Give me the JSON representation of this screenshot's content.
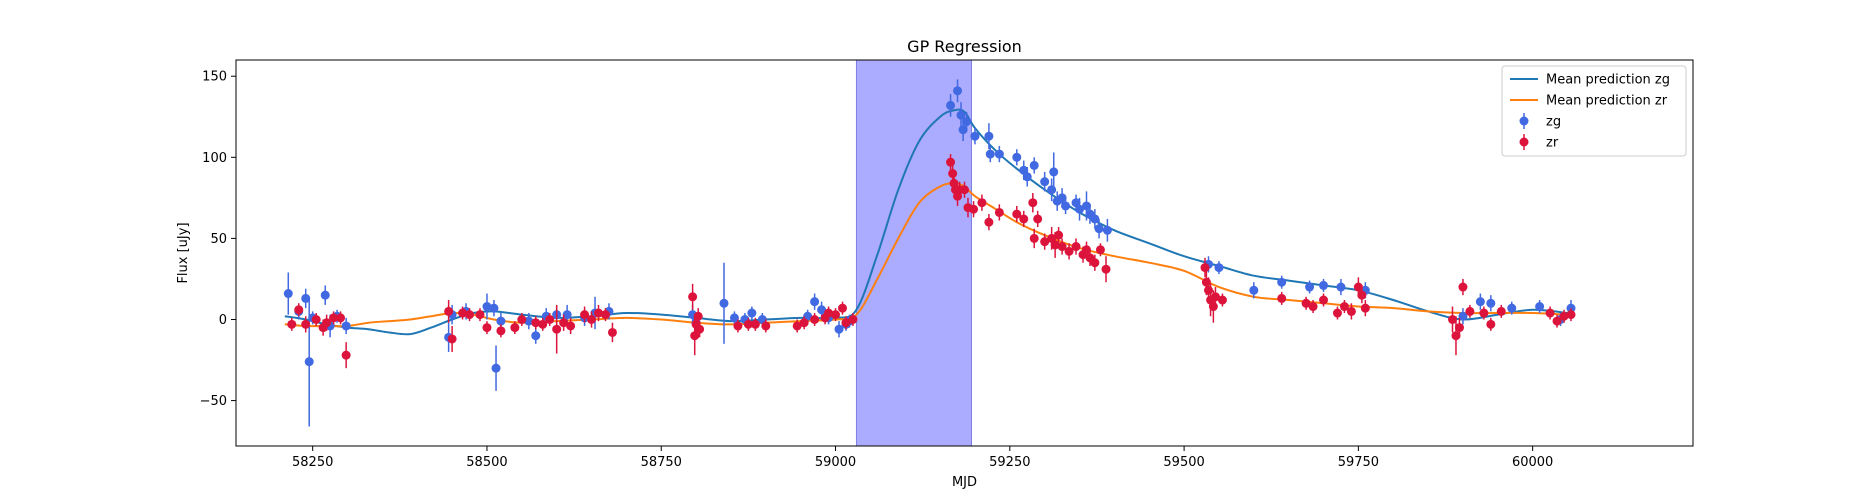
{
  "chart_data": {
    "type": "scatter",
    "title": "GP Regression",
    "xlabel": "MJD",
    "ylabel": "Flux [uJy]",
    "xlim": [
      58140,
      60230
    ],
    "ylim": [
      -78,
      160
    ],
    "xticks": [
      58250,
      58500,
      58750,
      59000,
      59250,
      59500,
      59750,
      60000
    ],
    "yticks": [
      -50,
      0,
      50,
      100,
      150
    ],
    "grid": false,
    "legend_position": "top-right",
    "shaded_region": {
      "x_start": 59030,
      "x_end": 59195,
      "color": "#a6a6ff"
    },
    "lines": [
      {
        "name": "Mean prediction zg",
        "color": "#1f77b4",
        "x": [
          58210,
          58240,
          58270,
          58300,
          58330,
          58360,
          58390,
          58420,
          58450,
          58480,
          58510,
          58550,
          58600,
          58650,
          58700,
          58750,
          58800,
          58850,
          58900,
          58950,
          59000,
          59030,
          59060,
          59090,
          59120,
          59150,
          59170,
          59185,
          59200,
          59230,
          59260,
          59300,
          59350,
          59400,
          59450,
          59500,
          59550,
          59600,
          59650,
          59700,
          59750,
          59800,
          59850,
          59900,
          59950,
          60000,
          60050
        ],
        "y": [
          2,
          0,
          -3,
          -5,
          -6,
          -8,
          -9,
          -5,
          0,
          4,
          5,
          3,
          1,
          2,
          4,
          3,
          1,
          -1,
          0,
          1,
          1,
          6,
          40,
          80,
          110,
          125,
          129,
          128,
          118,
          104,
          93,
          80,
          66,
          55,
          47,
          39,
          33,
          27,
          24,
          21,
          18,
          12,
          5,
          0,
          3,
          6,
          4
        ]
      },
      {
        "name": "Mean prediction zr",
        "color": "#ff7f0e",
        "x": [
          58210,
          58240,
          58270,
          58300,
          58330,
          58360,
          58390,
          58420,
          58450,
          58480,
          58510,
          58550,
          58600,
          58650,
          58700,
          58750,
          58800,
          58850,
          58900,
          58950,
          59000,
          59030,
          59060,
          59090,
          59120,
          59150,
          59170,
          59185,
          59200,
          59230,
          59260,
          59300,
          59350,
          59400,
          59450,
          59500,
          59550,
          59600,
          59650,
          59700,
          59750,
          59800,
          59850,
          59900,
          59950,
          60000,
          60050
        ],
        "y": [
          -3,
          -4,
          -4,
          -4,
          -2,
          -1,
          0,
          2,
          4,
          3,
          0,
          -2,
          -1,
          0,
          1,
          0,
          -2,
          -3,
          -2,
          -1,
          0,
          3,
          25,
          50,
          72,
          82,
          84,
          82,
          76,
          68,
          60,
          52,
          44,
          39,
          35,
          30,
          20,
          14,
          12,
          10,
          8,
          7,
          5,
          4,
          4,
          4,
          3
        ]
      }
    ],
    "series": [
      {
        "name": "zg",
        "color": "#4169e1",
        "points": [
          [
            58215,
            16,
            13
          ],
          [
            58230,
            5,
            5
          ],
          [
            58240,
            13,
            6
          ],
          [
            58245,
            -26,
            40
          ],
          [
            58250,
            1,
            4
          ],
          [
            58268,
            15,
            6
          ],
          [
            58275,
            -4,
            7
          ],
          [
            58285,
            2,
            4
          ],
          [
            58298,
            -4,
            5
          ],
          [
            58445,
            -11,
            9
          ],
          [
            58450,
            3,
            6
          ],
          [
            58470,
            5,
            5
          ],
          [
            58500,
            8,
            8
          ],
          [
            58510,
            7,
            5
          ],
          [
            58513,
            -30,
            14
          ],
          [
            58520,
            -1,
            5
          ],
          [
            58560,
            -1,
            5
          ],
          [
            58570,
            -10,
            5
          ],
          [
            58585,
            2,
            5
          ],
          [
            58600,
            3,
            5
          ],
          [
            58615,
            3,
            6
          ],
          [
            58640,
            1,
            5
          ],
          [
            58655,
            4,
            10
          ],
          [
            58675,
            5,
            5
          ],
          [
            58795,
            3,
            6
          ],
          [
            58800,
            -2,
            5
          ],
          [
            58840,
            10,
            25
          ],
          [
            58855,
            1,
            4
          ],
          [
            58870,
            0,
            4
          ],
          [
            58880,
            4,
            4
          ],
          [
            58895,
            0,
            4
          ],
          [
            58960,
            2,
            4
          ],
          [
            58970,
            11,
            5
          ],
          [
            58980,
            6,
            5
          ],
          [
            58990,
            1,
            4
          ],
          [
            59005,
            -6,
            5
          ],
          [
            59015,
            -3,
            4
          ],
          [
            59020,
            -1,
            4
          ],
          [
            59165,
            132,
            7
          ],
          [
            59175,
            141,
            7
          ],
          [
            59180,
            126,
            8
          ],
          [
            59183,
            117,
            7
          ],
          [
            59188,
            122,
            6
          ],
          [
            59200,
            113,
            5
          ],
          [
            59220,
            113,
            8
          ],
          [
            59222,
            102,
            5
          ],
          [
            59235,
            102,
            5
          ],
          [
            59260,
            100,
            5
          ],
          [
            59270,
            92,
            6
          ],
          [
            59275,
            88,
            6
          ],
          [
            59285,
            95,
            5
          ],
          [
            59300,
            85,
            6
          ],
          [
            59310,
            80,
            7
          ],
          [
            59313,
            91,
            12
          ],
          [
            59318,
            73,
            6
          ],
          [
            59325,
            75,
            6
          ],
          [
            59330,
            70,
            5
          ],
          [
            59345,
            72,
            5
          ],
          [
            59350,
            68,
            7
          ],
          [
            59360,
            70,
            9
          ],
          [
            59365,
            65,
            6
          ],
          [
            59372,
            62,
            6
          ],
          [
            59378,
            56,
            6
          ],
          [
            59390,
            55,
            7
          ],
          [
            59535,
            34,
            5
          ],
          [
            59550,
            32,
            4
          ],
          [
            59600,
            18,
            5
          ],
          [
            59640,
            23,
            4
          ],
          [
            59680,
            20,
            4
          ],
          [
            59700,
            21,
            4
          ],
          [
            59725,
            20,
            5
          ],
          [
            59760,
            18,
            5
          ],
          [
            59900,
            2,
            5
          ],
          [
            59925,
            11,
            5
          ],
          [
            59940,
            10,
            5
          ],
          [
            59970,
            7,
            4
          ],
          [
            60010,
            8,
            4
          ],
          [
            60040,
            0,
            4
          ],
          [
            60055,
            7,
            5
          ]
        ]
      },
      {
        "name": "zr",
        "color": "#dc143c",
        "points": [
          [
            58220,
            -3,
            4
          ],
          [
            58230,
            6,
            4
          ],
          [
            58240,
            -3,
            5
          ],
          [
            58255,
            0,
            4
          ],
          [
            58265,
            -5,
            5
          ],
          [
            58270,
            -2,
            5
          ],
          [
            58280,
            1,
            4
          ],
          [
            58290,
            1,
            4
          ],
          [
            58298,
            -22,
            8
          ],
          [
            58445,
            5,
            7
          ],
          [
            58450,
            -12,
            8
          ],
          [
            58465,
            4,
            4
          ],
          [
            58475,
            3,
            4
          ],
          [
            58490,
            3,
            4
          ],
          [
            58500,
            -5,
            4
          ],
          [
            58520,
            -7,
            4
          ],
          [
            58540,
            -5,
            4
          ],
          [
            58550,
            0,
            4
          ],
          [
            58570,
            -2,
            4
          ],
          [
            58580,
            -3,
            4
          ],
          [
            58590,
            0,
            4
          ],
          [
            58600,
            -6,
            15
          ],
          [
            58610,
            -2,
            5
          ],
          [
            58620,
            -4,
            5
          ],
          [
            58640,
            3,
            5
          ],
          [
            58650,
            0,
            5
          ],
          [
            58660,
            4,
            5
          ],
          [
            58670,
            3,
            4
          ],
          [
            58680,
            -8,
            6
          ],
          [
            58795,
            14,
            8
          ],
          [
            58798,
            -10,
            12
          ],
          [
            58800,
            -3,
            7
          ],
          [
            58803,
            2,
            5
          ],
          [
            58805,
            -6,
            5
          ],
          [
            58860,
            -4,
            4
          ],
          [
            58875,
            -3,
            4
          ],
          [
            58885,
            -3,
            4
          ],
          [
            58900,
            -4,
            4
          ],
          [
            58945,
            -4,
            4
          ],
          [
            58955,
            -2,
            4
          ],
          [
            58970,
            0,
            4
          ],
          [
            58985,
            1,
            4
          ],
          [
            58990,
            4,
            4
          ],
          [
            59000,
            3,
            4
          ],
          [
            59010,
            7,
            4
          ],
          [
            59015,
            -2,
            4
          ],
          [
            59025,
            0,
            4
          ],
          [
            59165,
            97,
            5
          ],
          [
            59168,
            90,
            6
          ],
          [
            59170,
            84,
            6
          ],
          [
            59172,
            80,
            6
          ],
          [
            59175,
            76,
            6
          ],
          [
            59178,
            80,
            5
          ],
          [
            59185,
            80,
            5
          ],
          [
            59190,
            69,
            6
          ],
          [
            59198,
            68,
            5
          ],
          [
            59210,
            72,
            5
          ],
          [
            59220,
            60,
            5
          ],
          [
            59235,
            66,
            5
          ],
          [
            59260,
            65,
            5
          ],
          [
            59270,
            62,
            5
          ],
          [
            59283,
            72,
            6
          ],
          [
            59285,
            50,
            6
          ],
          [
            59290,
            62,
            5
          ],
          [
            59300,
            48,
            5
          ],
          [
            59310,
            50,
            7
          ],
          [
            59315,
            46,
            8
          ],
          [
            59320,
            52,
            5
          ],
          [
            59325,
            45,
            5
          ],
          [
            59335,
            42,
            5
          ],
          [
            59345,
            45,
            5
          ],
          [
            59355,
            40,
            5
          ],
          [
            59360,
            43,
            5
          ],
          [
            59365,
            38,
            5
          ],
          [
            59372,
            35,
            5
          ],
          [
            59380,
            43,
            4
          ],
          [
            59388,
            31,
            8
          ],
          [
            59530,
            32,
            6
          ],
          [
            59532,
            23,
            8
          ],
          [
            59535,
            18,
            8
          ],
          [
            59538,
            12,
            10
          ],
          [
            59542,
            8,
            10
          ],
          [
            59545,
            14,
            6
          ],
          [
            59555,
            12,
            4
          ],
          [
            59640,
            13,
            4
          ],
          [
            59675,
            10,
            4
          ],
          [
            59685,
            8,
            4
          ],
          [
            59700,
            12,
            4
          ],
          [
            59720,
            4,
            4
          ],
          [
            59730,
            8,
            4
          ],
          [
            59740,
            5,
            5
          ],
          [
            59750,
            20,
            6
          ],
          [
            59755,
            15,
            5
          ],
          [
            59760,
            7,
            5
          ],
          [
            59885,
            0,
            8
          ],
          [
            59890,
            -10,
            12
          ],
          [
            59895,
            -5,
            6
          ],
          [
            59900,
            20,
            5
          ],
          [
            59910,
            5,
            4
          ],
          [
            59930,
            4,
            4
          ],
          [
            59940,
            -3,
            4
          ],
          [
            59955,
            5,
            4
          ],
          [
            60025,
            4,
            4
          ],
          [
            60035,
            -1,
            4
          ],
          [
            60045,
            2,
            4
          ],
          [
            60055,
            3,
            4
          ]
        ]
      }
    ]
  }
}
